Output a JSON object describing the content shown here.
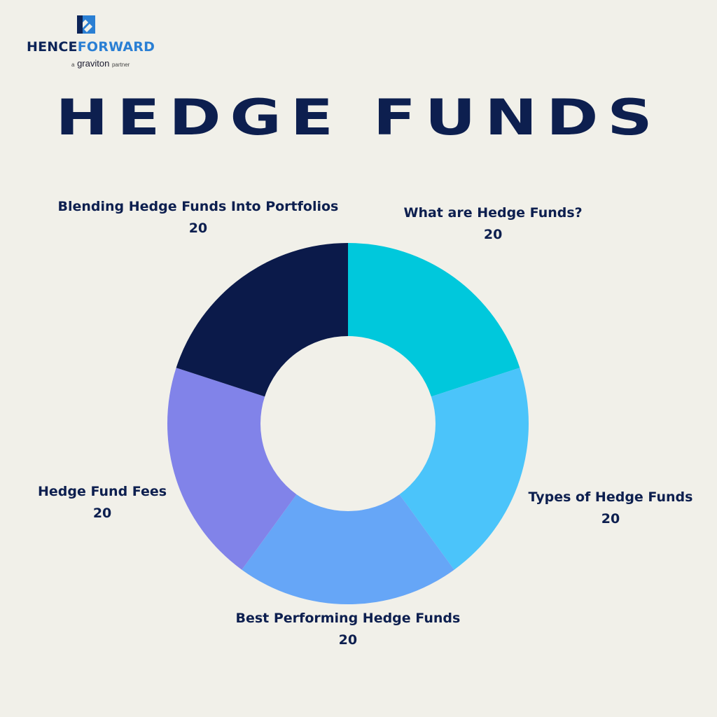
{
  "logo": {
    "brand_part1": "HENCE",
    "brand_part2": "FORWARD",
    "tagline_prefix": "a",
    "tagline_brand": "graviton",
    "tagline_suffix": "partner"
  },
  "title": "HEDGE FUNDS",
  "chart_data": {
    "type": "pie",
    "donut": true,
    "categories": [
      "What are Hedge Funds?",
      "Types of Hedge Funds",
      "Best Performing Hedge Funds",
      "Hedge Fund Fees",
      "Blending Hedge Funds Into Portfolios"
    ],
    "values": [
      20,
      20,
      20,
      20,
      20
    ],
    "colors": [
      "#00c8dc",
      "#4bc4fa",
      "#66a6f7",
      "#8183e9",
      "#0b1a4a"
    ],
    "label_placement": "outside"
  }
}
